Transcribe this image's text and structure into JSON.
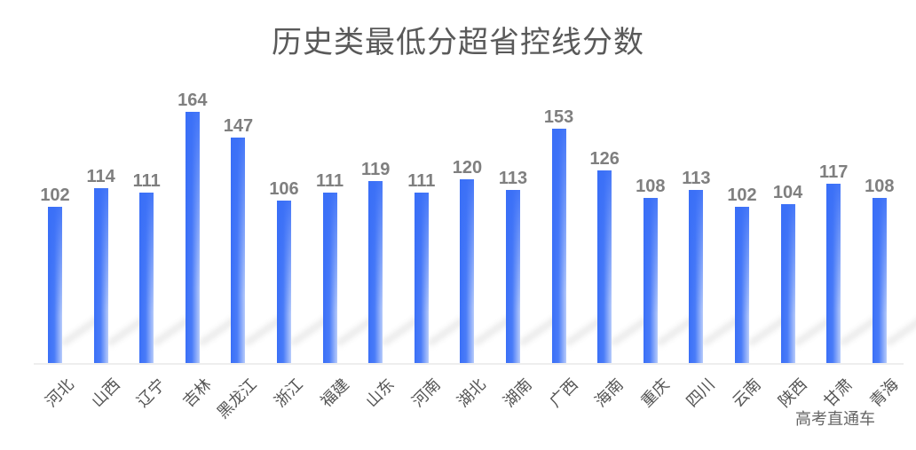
{
  "title": "历史类最低分超省控线分数",
  "watermark": "高考直通车",
  "bar_color": "#3a6ff7",
  "label_color": "#7f7f7f",
  "chart_data": {
    "type": "bar",
    "title": "历史类最低分超省控线分数",
    "xlabel": "",
    "ylabel": "",
    "categories": [
      "河北",
      "山西",
      "辽宁",
      "吉林",
      "黑龙江",
      "浙江",
      "福建",
      "山东",
      "河南",
      "湖北",
      "湖南",
      "广西",
      "海南",
      "重庆",
      "四川",
      "云南",
      "陕西",
      "甘肃",
      "青海"
    ],
    "values": [
      102,
      114,
      111,
      164,
      147,
      106,
      111,
      119,
      111,
      120,
      113,
      153,
      126,
      108,
      113,
      102,
      104,
      117,
      108
    ],
    "data_labels": true,
    "grid": false,
    "legend": null,
    "ylim": [
      0,
      170
    ]
  }
}
